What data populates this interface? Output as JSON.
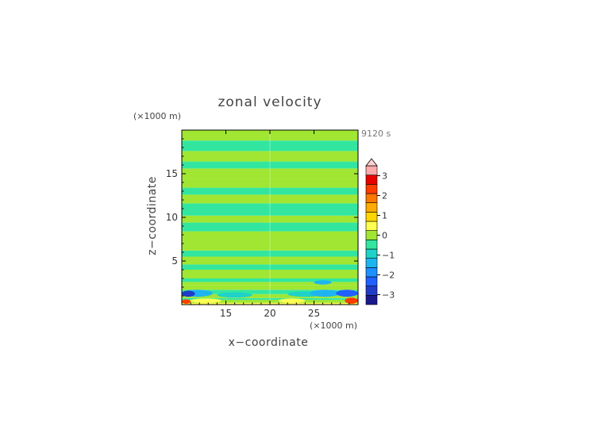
{
  "chart_data": {
    "type": "heatmap",
    "title": "zonal velocity",
    "xlabel": "x−coordinate",
    "ylabel": "z−coordinate",
    "x_unit": "(×1000 m)",
    "y_unit": "(×1000 m)",
    "time_label": "9120 s",
    "xlim": [
      10,
      30
    ],
    "ylim": [
      0,
      20
    ],
    "x_ticks": [
      {
        "value": 15,
        "label": "15"
      },
      {
        "value": 20,
        "label": "20"
      },
      {
        "value": 25,
        "label": "25"
      }
    ],
    "y_ticks": [
      {
        "value": 5,
        "label": "5"
      },
      {
        "value": 10,
        "label": "10"
      },
      {
        "value": 15,
        "label": "15"
      }
    ],
    "colorbar": {
      "range": [
        -3.5,
        3.5
      ],
      "step": 0.5,
      "extend": "max",
      "ticks": [
        {
          "value": 3,
          "label": "3"
        },
        {
          "value": 2,
          "label": "2"
        },
        {
          "value": 1,
          "label": "1"
        },
        {
          "value": 0,
          "label": "0"
        },
        {
          "value": -1,
          "label": "−1"
        },
        {
          "value": -2,
          "label": "−2"
        },
        {
          "value": -3,
          "label": "−3"
        }
      ],
      "colors": [
        "#1a1a8c",
        "#1e3cc8",
        "#2060ff",
        "#1e90ff",
        "#1eb4f0",
        "#1ed2c8",
        "#32e6a0",
        "#a0e632",
        "#ffff50",
        "#ffd700",
        "#ffaa00",
        "#ff7800",
        "#ff3c00",
        "#e60000",
        "#ffaaaa"
      ],
      "over_color": "#ffd2d2"
    },
    "field_bands": [
      {
        "z": [
          0.0,
          0.2
        ],
        "u": 0.5
      },
      {
        "z": [
          0.2,
          0.55
        ],
        "u": 0.2
      },
      {
        "z": [
          0.55,
          0.75
        ],
        "u": -0.1
      },
      {
        "z": [
          0.75,
          1.2
        ],
        "u": 0.3
      },
      {
        "z": [
          1.2,
          1.7
        ],
        "u": -0.2
      },
      {
        "z": [
          1.7,
          2.2
        ],
        "u": 0.2
      },
      {
        "z": [
          2.2,
          2.6
        ],
        "u": 0.3
      },
      {
        "z": [
          2.6,
          3.0
        ],
        "u": -0.2
      },
      {
        "z": [
          3.0,
          4.0
        ],
        "u": 0.3
      },
      {
        "z": [
          4.0,
          4.6
        ],
        "u": -0.2
      },
      {
        "z": [
          4.6,
          5.5
        ],
        "u": 0.2
      },
      {
        "z": [
          5.5,
          6.2
        ],
        "u": -0.2
      },
      {
        "z": [
          6.2,
          7.0
        ],
        "u": 0.2
      },
      {
        "z": [
          7.0,
          8.4
        ],
        "u": 0.3
      },
      {
        "z": [
          8.4,
          9.4
        ],
        "u": -0.2
      },
      {
        "z": [
          9.4,
          10.2
        ],
        "u": 0.3
      },
      {
        "z": [
          10.2,
          11.6
        ],
        "u": -0.2
      },
      {
        "z": [
          11.6,
          12.6
        ],
        "u": 0.3
      },
      {
        "z": [
          12.6,
          13.4
        ],
        "u": -0.2
      },
      {
        "z": [
          13.4,
          14.4
        ],
        "u": 0.2
      },
      {
        "z": [
          14.4,
          15.6
        ],
        "u": 0.3
      },
      {
        "z": [
          15.6,
          16.4
        ],
        "u": -0.2
      },
      {
        "z": [
          16.4,
          17.6
        ],
        "u": 0.3
      },
      {
        "z": [
          17.6,
          18.8
        ],
        "u": -0.2
      },
      {
        "z": [
          18.8,
          20.0
        ],
        "u": 0.3
      }
    ],
    "field_patches": [
      {
        "x": [
          10.0,
          13.5
        ],
        "z": [
          0.9,
          1.7
        ],
        "u": -1.5
      },
      {
        "x": [
          10.0,
          11.5
        ],
        "z": [
          0.9,
          1.6
        ],
        "u": -3.0
      },
      {
        "x": [
          10.0,
          11.0
        ],
        "z": [
          0.1,
          0.6
        ],
        "u": 2.5
      },
      {
        "x": [
          11.0,
          14.5
        ],
        "z": [
          0.2,
          0.7
        ],
        "u": 0.8
      },
      {
        "x": [
          14.0,
          18.0
        ],
        "z": [
          0.8,
          1.4
        ],
        "u": -0.8
      },
      {
        "x": [
          22.0,
          26.0
        ],
        "z": [
          0.9,
          1.5
        ],
        "u": -0.8
      },
      {
        "x": [
          24.5,
          28.0
        ],
        "z": [
          0.9,
          1.7
        ],
        "u": -1.5
      },
      {
        "x": [
          25.0,
          27.0
        ],
        "z": [
          2.3,
          2.8
        ],
        "u": -1.2
      },
      {
        "x": [
          27.5,
          30.0
        ],
        "z": [
          0.9,
          1.7
        ],
        "u": -2.5
      },
      {
        "x": [
          28.5,
          30.0
        ],
        "z": [
          0.1,
          0.8
        ],
        "u": 2.5
      },
      {
        "x": [
          21.0,
          24.0
        ],
        "z": [
          0.2,
          0.7
        ],
        "u": 0.8
      },
      {
        "x": [
          10.5,
          14.0
        ],
        "z": [
          8.5,
          9.4
        ],
        "u": -0.2
      },
      {
        "x": [
          26.0,
          30.0
        ],
        "z": [
          8.5,
          9.4
        ],
        "u": -0.2
      }
    ]
  }
}
